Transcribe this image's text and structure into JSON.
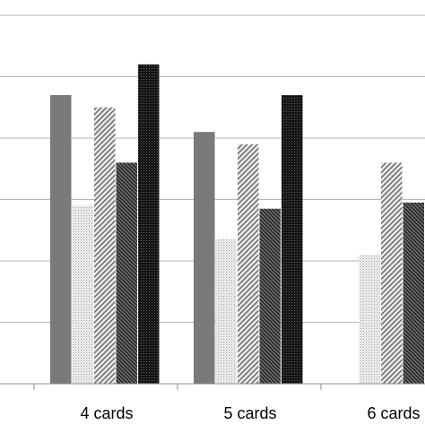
{
  "chart_data": {
    "type": "bar",
    "categories": [
      "4 cards",
      "5 cards",
      "6 cards"
    ],
    "series": [
      {
        "values": [
          4.7,
          4.1,
          0
        ]
      },
      {
        "values": [
          2.9,
          2.35,
          2.1
        ]
      },
      {
        "values": [
          4.5,
          3.9,
          3.6
        ]
      },
      {
        "values": [
          3.6,
          2.85,
          2.95
        ]
      },
      {
        "values": [
          5.2,
          4.7,
          null
        ]
      }
    ],
    "ylim": [
      0,
      6.2
    ],
    "grid": true,
    "colors": [
      "#7a7a7a",
      "#cfcfcf",
      "#a8a8a8",
      "#4a4a4a",
      "#1a1a1a"
    ],
    "patterns": [
      "solid",
      "light-dots",
      "diagonal-hatch",
      "dense-diagonal-hatch",
      "dark-dots"
    ],
    "xlabel": "",
    "ylabel": ""
  }
}
